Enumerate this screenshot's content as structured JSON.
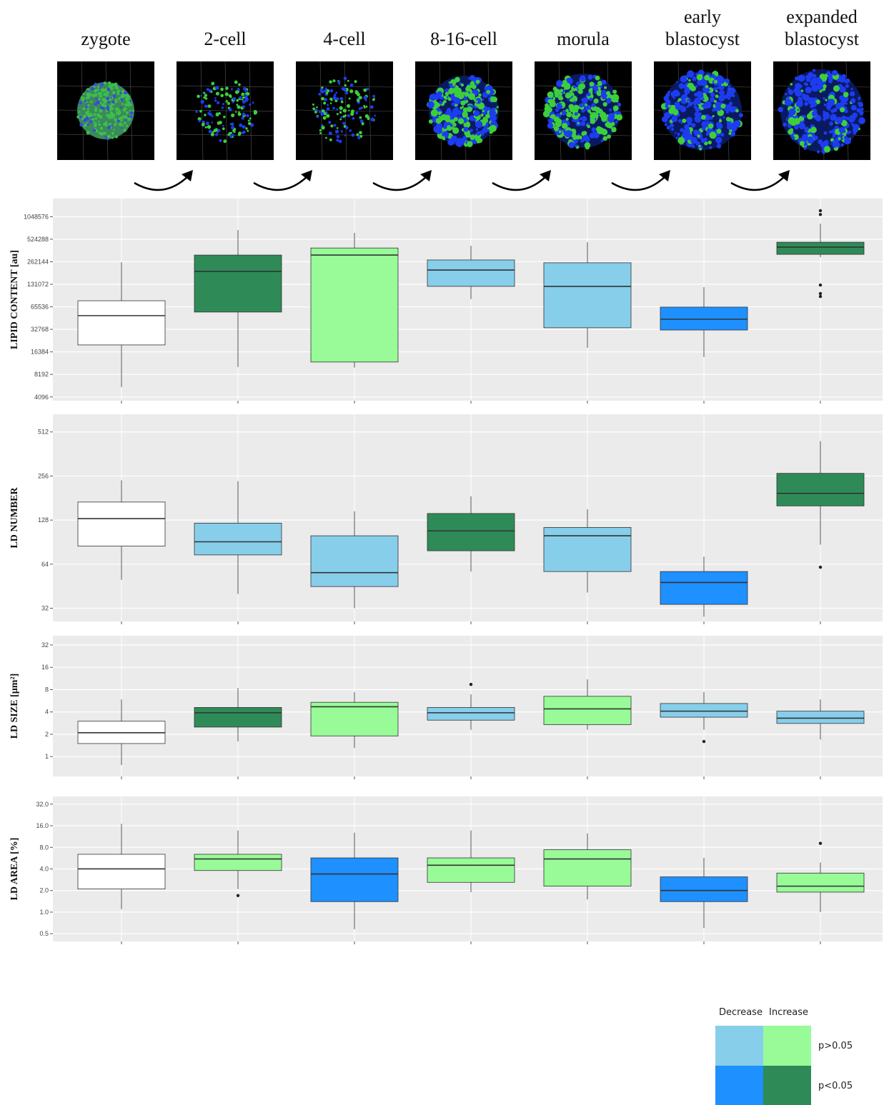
{
  "stages": [
    "zygote",
    "2-cell",
    "4-cell",
    "8-16-cell",
    "morula",
    "early blastocyst",
    "expanded blastocyst"
  ],
  "chart_data": [
    {
      "type": "box",
      "ylabel": "LIPID CONTENT [au]",
      "log_base": 2,
      "grid": true,
      "ylim": [
        3650,
        1830000
      ],
      "yticks": [
        4096,
        8192,
        16384,
        32768,
        65536,
        131072,
        262144,
        524288,
        1048576
      ],
      "boxes": [
        {
          "color": "#ffffff",
          "min": 5550,
          "q1": 20300,
          "median": 50000,
          "q3": 79000,
          "max": 258000,
          "outliers": []
        },
        {
          "color": "#2e8b57",
          "min": 10300,
          "q1": 55800,
          "median": 195000,
          "q3": 322000,
          "max": 697000,
          "outliers": []
        },
        {
          "color": "#98fb98",
          "min": 10100,
          "q1": 12000,
          "median": 322000,
          "q3": 400000,
          "max": 637000,
          "outliers": []
        },
        {
          "color": "#87ceeb",
          "min": 83000,
          "q1": 123000,
          "median": 203000,
          "q3": 277000,
          "max": 428000,
          "outliers": []
        },
        {
          "color": "#87ceeb",
          "min": 18600,
          "q1": 34400,
          "median": 123000,
          "q3": 254000,
          "max": 478000,
          "outliers": []
        },
        {
          "color": "#1e90ff",
          "min": 14000,
          "q1": 32100,
          "median": 44800,
          "q3": 65000,
          "max": 120000,
          "outliers": []
        },
        {
          "color": "#2e8b57",
          "min": 301000,
          "q1": 329000,
          "median": 411000,
          "q3": 478000,
          "max": 847000,
          "outliers": [
            1260000,
            1120000,
            128000,
            98500,
            90000
          ]
        }
      ]
    },
    {
      "type": "box",
      "ylabel": "LD NUMBER",
      "log_base": 2,
      "grid": true,
      "ylim": [
        26,
        676
      ],
      "yticks": [
        32,
        64,
        128,
        256,
        512
      ],
      "boxes": [
        {
          "color": "#ffffff",
          "min": 50,
          "q1": 85,
          "median": 131,
          "q3": 170,
          "max": 239,
          "outliers": []
        },
        {
          "color": "#87ceeb",
          "min": 40,
          "q1": 74,
          "median": 91,
          "q3": 122,
          "max": 236,
          "outliers": []
        },
        {
          "color": "#87ceeb",
          "min": 32,
          "q1": 45,
          "median": 56,
          "q3": 100,
          "max": 147,
          "outliers": []
        },
        {
          "color": "#2e8b57",
          "min": 57,
          "q1": 79,
          "median": 108,
          "q3": 142,
          "max": 186,
          "outliers": []
        },
        {
          "color": "#87ceeb",
          "min": 41,
          "q1": 57,
          "median": 100,
          "q3": 114,
          "max": 152,
          "outliers": []
        },
        {
          "color": "#1e90ff",
          "min": 28,
          "q1": 34,
          "median": 48,
          "q3": 57,
          "max": 72,
          "outliers": []
        },
        {
          "color": "#2e8b57",
          "min": 87,
          "q1": 160,
          "median": 195,
          "q3": 267,
          "max": 443,
          "outliers": [
            61
          ]
        }
      ]
    },
    {
      "type": "box",
      "ylabel": "LD SIZE [µm²]",
      "log_base": 2,
      "grid": true,
      "ylim": [
        0.54,
        42.7
      ],
      "yticks": [
        1,
        2,
        4,
        8,
        16,
        32
      ],
      "boxes": [
        {
          "color": "#ffffff",
          "min": 0.77,
          "q1": 1.5,
          "median": 2.1,
          "q3": 3.0,
          "max": 5.9,
          "outliers": []
        },
        {
          "color": "#2e8b57",
          "min": 1.6,
          "q1": 2.5,
          "median": 3.9,
          "q3": 4.6,
          "max": 8.4,
          "outliers": []
        },
        {
          "color": "#98fb98",
          "min": 1.3,
          "q1": 1.9,
          "median": 4.7,
          "q3": 5.4,
          "max": 7.4,
          "outliers": []
        },
        {
          "color": "#87ceeb",
          "min": 2.3,
          "q1": 3.1,
          "median": 3.9,
          "q3": 4.6,
          "max": 6.9,
          "outliers": [
            9.4
          ]
        },
        {
          "color": "#98fb98",
          "min": 2.3,
          "q1": 2.7,
          "median": 4.4,
          "q3": 6.5,
          "max": 11,
          "outliers": []
        },
        {
          "color": "#87ceeb",
          "min": 2.3,
          "q1": 3.4,
          "median": 4.1,
          "q3": 5.2,
          "max": 7.4,
          "outliers": [
            1.6
          ]
        },
        {
          "color": "#87ceeb",
          "min": 1.7,
          "q1": 2.8,
          "median": 3.3,
          "q3": 4.1,
          "max": 5.9,
          "outliers": []
        }
      ]
    },
    {
      "type": "box",
      "ylabel": "LD AREA [%]",
      "log_base": 2,
      "grid": true,
      "ylim": [
        0.39,
        41
      ],
      "yticks": [
        0.5,
        {
          "value": 1,
          "label": "1.0"
        },
        {
          "value": 2,
          "label": "2.0"
        },
        {
          "value": 4,
          "label": "4.0"
        },
        {
          "value": 8,
          "label": "8.0"
        },
        {
          "value": 16,
          "label": "16.0"
        },
        {
          "value": 32,
          "label": "32.0"
        }
      ],
      "boxes": [
        {
          "color": "#ffffff",
          "min": 1.1,
          "q1": 2.1,
          "median": 4.0,
          "q3": 6.4,
          "max": 17,
          "outliers": []
        },
        {
          "color": "#98fb98",
          "min": 2.1,
          "q1": 3.8,
          "median": 5.5,
          "q3": 6.4,
          "max": 13.7,
          "outliers": [
            1.7
          ]
        },
        {
          "color": "#1e90ff",
          "min": 0.58,
          "q1": 1.4,
          "median": 3.4,
          "q3": 5.7,
          "max": 12.8,
          "outliers": []
        },
        {
          "color": "#98fb98",
          "min": 1.9,
          "q1": 2.6,
          "median": 4.5,
          "q3": 5.7,
          "max": 13.7,
          "outliers": []
        },
        {
          "color": "#98fb98",
          "min": 1.5,
          "q1": 2.3,
          "median": 5.5,
          "q3": 7.4,
          "max": 12.5,
          "outliers": []
        },
        {
          "color": "#1e90ff",
          "min": 0.6,
          "q1": 1.4,
          "median": 2.0,
          "q3": 3.1,
          "max": 5.7,
          "outliers": []
        },
        {
          "color": "#98fb98",
          "min": 1.0,
          "q1": 1.9,
          "median": 2.3,
          "q3": 3.5,
          "max": 4.9,
          "outliers": [
            9.1
          ]
        }
      ]
    }
  ],
  "legend": {
    "columns": [
      "Decrease",
      "Increase"
    ],
    "rows": [
      {
        "label": "p>0.05",
        "colors": [
          "#87ceeb",
          "#98fb98"
        ]
      },
      {
        "label": "p<0.05",
        "colors": [
          "#1e90ff",
          "#2e8b57"
        ]
      }
    ]
  }
}
